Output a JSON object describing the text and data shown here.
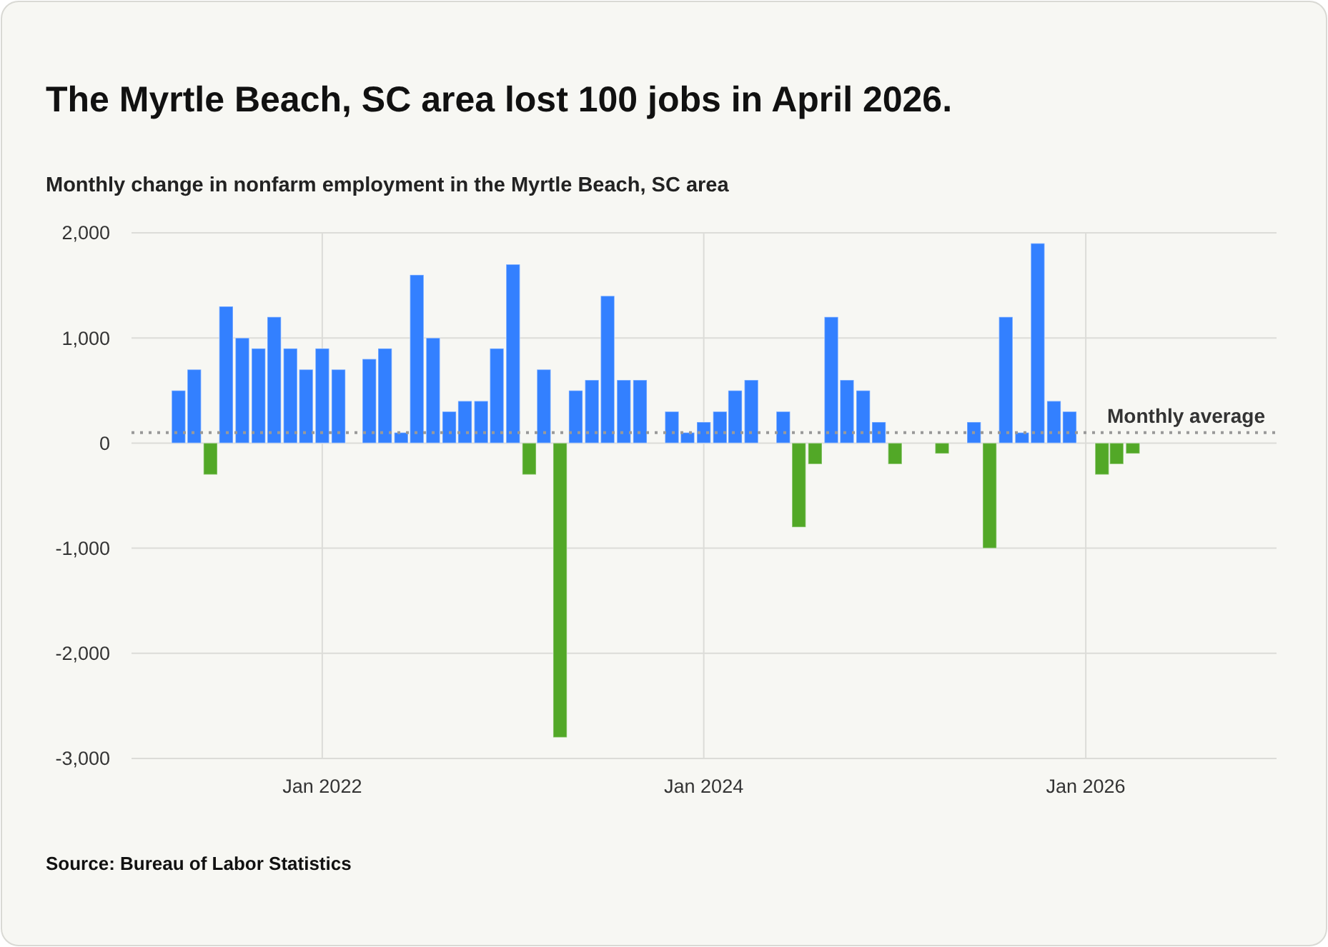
{
  "chart_data": {
    "type": "bar",
    "title": "The Myrtle Beach, SC area lost 100 jobs in April 2026.",
    "subtitle": "Monthly change in nonfarm employment in the Myrtle Beach, SC area",
    "annotations": [
      "Source: Bureau of Labor Statistics"
    ],
    "x": [
      "2021-04",
      "2021-05",
      "2021-06",
      "2021-07",
      "2021-08",
      "2021-09",
      "2021-10",
      "2021-11",
      "2021-12",
      "2022-01",
      "2022-02",
      "2022-03",
      "2022-04",
      "2022-05",
      "2022-06",
      "2022-07",
      "2022-08",
      "2022-09",
      "2022-10",
      "2022-11",
      "2022-12",
      "2023-01",
      "2023-02",
      "2023-03",
      "2023-04",
      "2023-05",
      "2023-06",
      "2023-07",
      "2023-08",
      "2023-09",
      "2023-10",
      "2023-11",
      "2023-12",
      "2024-01",
      "2024-02",
      "2024-03",
      "2024-04",
      "2024-05",
      "2024-06",
      "2024-07",
      "2024-08",
      "2024-09",
      "2024-10",
      "2024-11",
      "2024-12",
      "2025-01",
      "2025-02",
      "2025-03",
      "2025-04",
      "2025-05",
      "2025-06",
      "2025-07",
      "2025-08",
      "2025-09",
      "2025-10",
      "2025-11",
      "2025-12",
      "2026-01",
      "2026-02",
      "2026-03",
      "2026-04"
    ],
    "values": [
      500,
      700,
      -300,
      1300,
      1000,
      900,
      1200,
      900,
      700,
      900,
      700,
      0,
      800,
      900,
      100,
      1600,
      1000,
      300,
      400,
      400,
      900,
      1700,
      -300,
      700,
      -2800,
      500,
      600,
      1400,
      600,
      600,
      0,
      300,
      100,
      200,
      300,
      500,
      600,
      0,
      300,
      -800,
      -200,
      1200,
      600,
      500,
      200,
      -200,
      0,
      0,
      -100,
      0,
      200,
      -1000,
      1200,
      100,
      1900,
      400,
      300,
      0,
      -300,
      -200,
      -100
    ],
    "colors": [
      "#3380ff",
      "#3380ff",
      "#52a827",
      "#3380ff",
      "#3380ff",
      "#3380ff",
      "#3380ff",
      "#3380ff",
      "#3380ff",
      "#3380ff",
      "#3380ff",
      "#3380ff",
      "#3380ff",
      "#3380ff",
      "#3380ff",
      "#3380ff",
      "#3380ff",
      "#3380ff",
      "#3380ff",
      "#3380ff",
      "#3380ff",
      "#3380ff",
      "#52a827",
      "#3380ff",
      "#52a827",
      "#3380ff",
      "#3380ff",
      "#3380ff",
      "#3380ff",
      "#3380ff",
      "#3380ff",
      "#3380ff",
      "#3380ff",
      "#3380ff",
      "#3380ff",
      "#3380ff",
      "#3380ff",
      "#3380ff",
      "#3380ff",
      "#52a827",
      "#52a827",
      "#3380ff",
      "#3380ff",
      "#3380ff",
      "#3380ff",
      "#52a827",
      "#3380ff",
      "#3380ff",
      "#52a827",
      "#3380ff",
      "#3380ff",
      "#52a827",
      "#3380ff",
      "#3380ff",
      "#3380ff",
      "#3380ff",
      "#3380ff",
      "#3380ff",
      "#52a827",
      "#52a827",
      "#52a827"
    ],
    "xlim": [
      "2021-01",
      "2027-01"
    ],
    "xticks": [
      {
        "value": "2022-01",
        "label": "Jan 2022"
      },
      {
        "value": "2024-01",
        "label": "Jan 2024"
      },
      {
        "value": "2026-01",
        "label": "Jan 2026"
      }
    ],
    "ylim": [
      -3000,
      2000
    ],
    "yticks": [
      {
        "value": 2000,
        "label": "2,000"
      },
      {
        "value": 1000,
        "label": "1,000"
      },
      0,
      {
        "value": -1000,
        "label": "-1,000"
      },
      {
        "value": -2000,
        "label": "-2,000"
      },
      {
        "value": -3000,
        "label": "-3,000"
      }
    ],
    "grid": true,
    "ref_lines": [
      {
        "axis": "y",
        "value": 100,
        "label": "Monthly average",
        "color": "#999999",
        "line_style": "dotted"
      }
    ]
  }
}
